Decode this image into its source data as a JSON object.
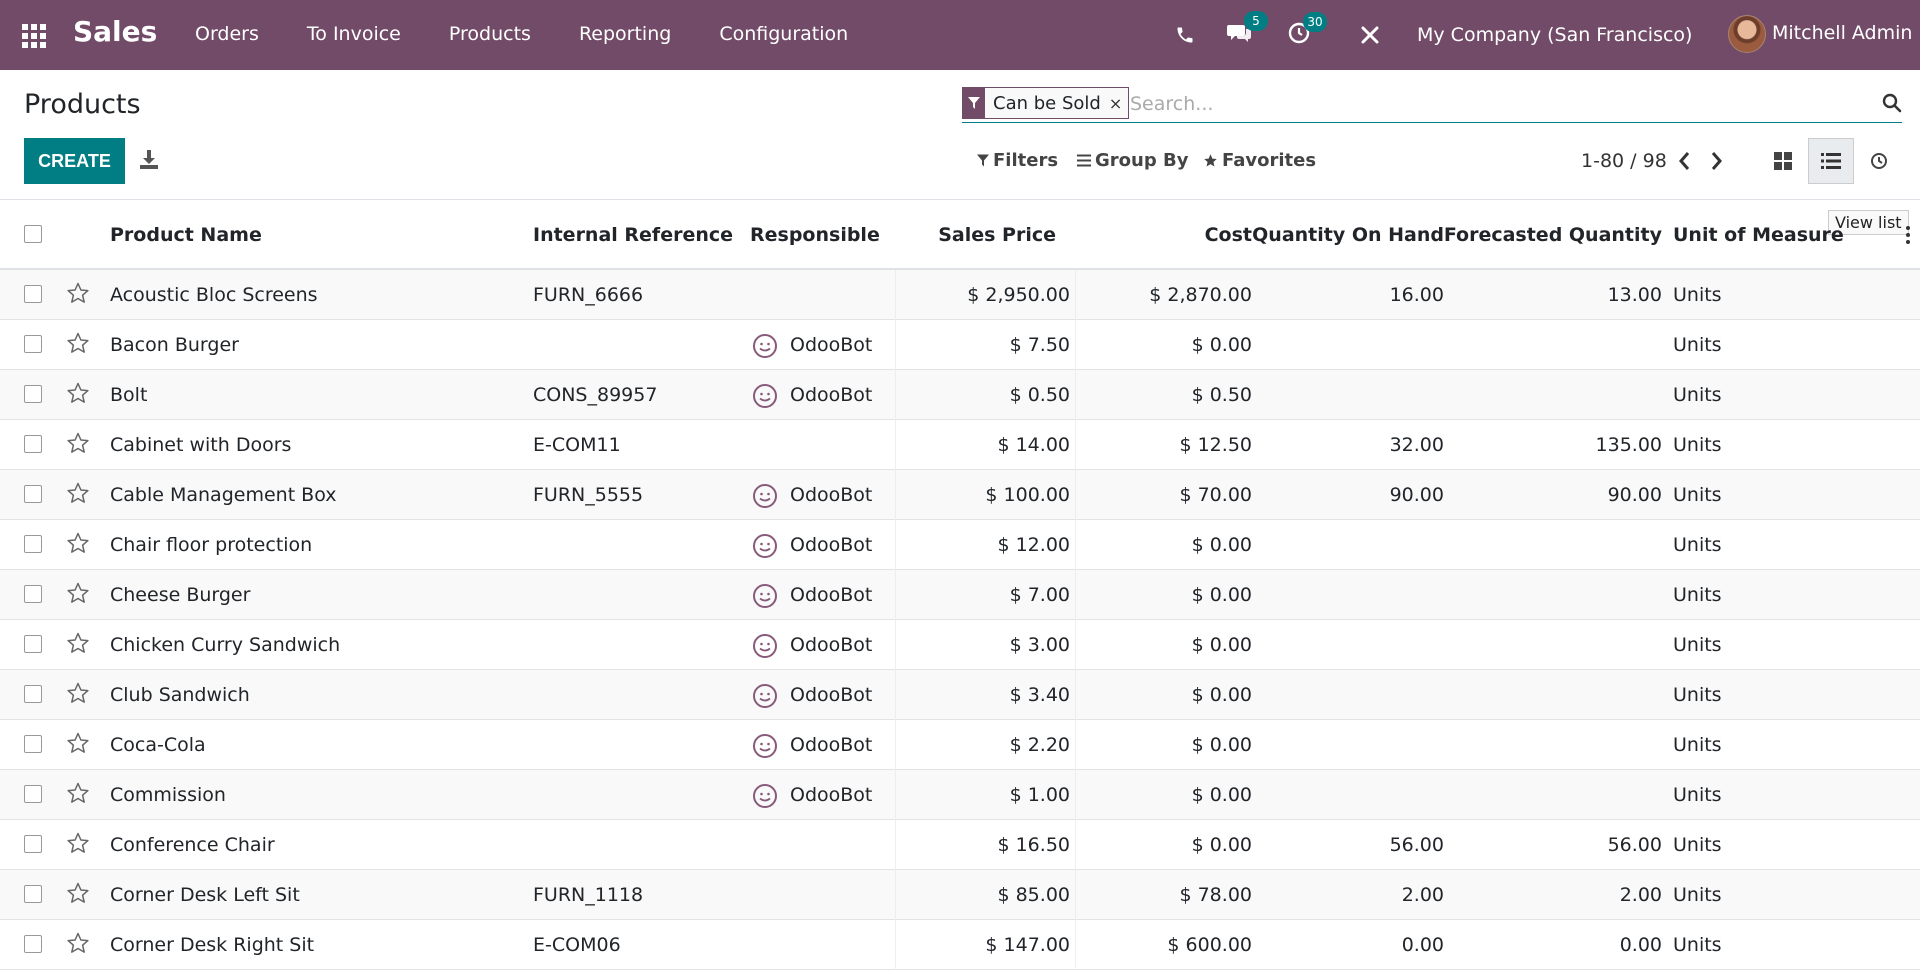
{
  "nav": {
    "brand": "Sales",
    "menu": [
      "Orders",
      "To Invoice",
      "Products",
      "Reporting",
      "Configuration"
    ],
    "messages_count": "5",
    "activities_count": "30",
    "company": "My Company (San Francisco)",
    "user": "Mitchell Admin"
  },
  "control": {
    "title": "Products",
    "create_label": "CREATE",
    "facet_label": "Can be Sold",
    "facet_close": "×",
    "search_placeholder": "Search...",
    "filters_label": "Filters",
    "groupby_label": "Group By",
    "favorites_label": "Favorites",
    "pager": "1-80 / 98",
    "tooltip": "View list"
  },
  "table": {
    "headers": {
      "name": "Product Name",
      "ref": "Internal Reference",
      "responsible": "Responsible",
      "price": "Sales Price",
      "cost": "Cost",
      "qty": "Quantity On Hand",
      "forecast": "Forecasted Quantity",
      "uom": "Unit of Measure"
    },
    "rows": [
      {
        "name": "Acoustic Bloc Screens",
        "ref": "FURN_6666",
        "responsible": "",
        "price": "$ 2,950.00",
        "cost": "$ 2,870.00",
        "qty": "16.00",
        "forecast": "13.00",
        "uom": "Units"
      },
      {
        "name": "Bacon Burger",
        "ref": "",
        "responsible": "OdooBot",
        "price": "$ 7.50",
        "cost": "$ 0.00",
        "qty": "",
        "forecast": "",
        "uom": "Units"
      },
      {
        "name": "Bolt",
        "ref": "CONS_89957",
        "responsible": "OdooBot",
        "price": "$ 0.50",
        "cost": "$ 0.50",
        "qty": "",
        "forecast": "",
        "uom": "Units"
      },
      {
        "name": "Cabinet with Doors",
        "ref": "E-COM11",
        "responsible": "",
        "price": "$ 14.00",
        "cost": "$ 12.50",
        "qty": "32.00",
        "forecast": "135.00",
        "uom": "Units"
      },
      {
        "name": "Cable Management Box",
        "ref": "FURN_5555",
        "responsible": "OdooBot",
        "price": "$ 100.00",
        "cost": "$ 70.00",
        "qty": "90.00",
        "forecast": "90.00",
        "uom": "Units"
      },
      {
        "name": "Chair floor protection",
        "ref": "",
        "responsible": "OdooBot",
        "price": "$ 12.00",
        "cost": "$ 0.00",
        "qty": "",
        "forecast": "",
        "uom": "Units"
      },
      {
        "name": "Cheese Burger",
        "ref": "",
        "responsible": "OdooBot",
        "price": "$ 7.00",
        "cost": "$ 0.00",
        "qty": "",
        "forecast": "",
        "uom": "Units"
      },
      {
        "name": "Chicken Curry Sandwich",
        "ref": "",
        "responsible": "OdooBot",
        "price": "$ 3.00",
        "cost": "$ 0.00",
        "qty": "",
        "forecast": "",
        "uom": "Units"
      },
      {
        "name": "Club Sandwich",
        "ref": "",
        "responsible": "OdooBot",
        "price": "$ 3.40",
        "cost": "$ 0.00",
        "qty": "",
        "forecast": "",
        "uom": "Units"
      },
      {
        "name": "Coca-Cola",
        "ref": "",
        "responsible": "OdooBot",
        "price": "$ 2.20",
        "cost": "$ 0.00",
        "qty": "",
        "forecast": "",
        "uom": "Units"
      },
      {
        "name": "Commission",
        "ref": "",
        "responsible": "OdooBot",
        "price": "$ 1.00",
        "cost": "$ 0.00",
        "qty": "",
        "forecast": "",
        "uom": "Units"
      },
      {
        "name": "Conference Chair",
        "ref": "",
        "responsible": "",
        "price": "$ 16.50",
        "cost": "$ 0.00",
        "qty": "56.00",
        "forecast": "56.00",
        "uom": "Units"
      },
      {
        "name": "Corner Desk Left Sit",
        "ref": "FURN_1118",
        "responsible": "",
        "price": "$ 85.00",
        "cost": "$ 78.00",
        "qty": "2.00",
        "forecast": "2.00",
        "uom": "Units"
      },
      {
        "name": "Corner Desk Right Sit",
        "ref": "E-COM06",
        "responsible": "",
        "price": "$ 147.00",
        "cost": "$ 600.00",
        "qty": "0.00",
        "forecast": "0.00",
        "uom": "Units"
      }
    ]
  },
  "colors": {
    "primary": "#714b67",
    "accent": "#017e84"
  }
}
